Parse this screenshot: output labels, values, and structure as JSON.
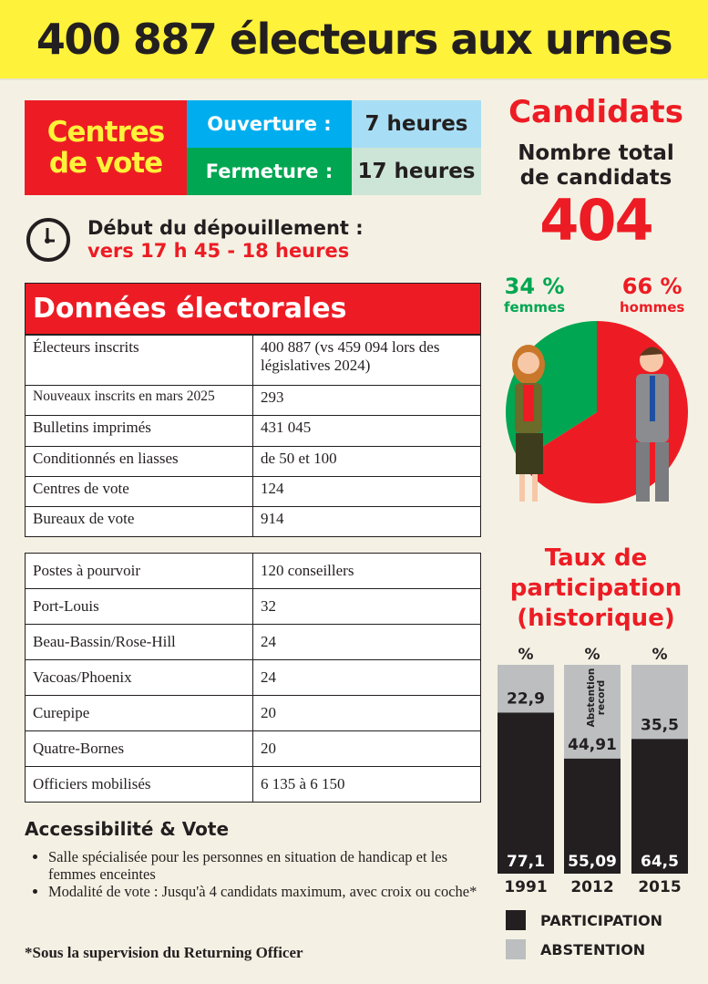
{
  "title": "400 887 électeurs aux urnes",
  "centres": {
    "label_line1": "Centres",
    "label_line2": "de vote",
    "ouverture_label": "Ouverture :",
    "ouverture_value": "7 heures",
    "fermeture_label": "Fermeture :",
    "fermeture_value": "17 heures"
  },
  "depouillement": {
    "label": "Début du dépouillement :",
    "value": "vers 17 h 45 - 18 heures",
    "icon": "clock-icon"
  },
  "donnees": {
    "title": "Données électorales",
    "rows": [
      {
        "label": "Électeurs inscrits",
        "value": "400 887 (vs 459 094 lors des législatives 2024)"
      },
      {
        "label": "Nouveaux inscrits en mars 2025",
        "value": "293"
      },
      {
        "label": "Bulletins imprimés",
        "value": "431 045"
      },
      {
        "label": "Conditionnés en liasses",
        "value": "de 50 et 100"
      },
      {
        "label": "Centres de vote",
        "value": "124"
      },
      {
        "label": "Bureaux de vote",
        "value": "914"
      }
    ]
  },
  "postes": {
    "rows": [
      {
        "label": "Postes à pourvoir",
        "value": "120 conseillers"
      },
      {
        "label": "Port-Louis",
        "value": "32"
      },
      {
        "label": "Beau-Bassin/Rose-Hill",
        "value": "24"
      },
      {
        "label": "Vacoas/Phoenix",
        "value": "24"
      },
      {
        "label": "Curepipe",
        "value": "20"
      },
      {
        "label": "Quatre-Bornes",
        "value": "20"
      },
      {
        "label": "Officiers mobilisés",
        "value": "6 135 à 6 150"
      }
    ]
  },
  "accessibilite": {
    "title": "Accessibilité & Vote",
    "bullets": [
      "Salle spécialisée pour les personnes en situation de handicap et les femmes enceintes",
      "Modalité de vote : Jusqu'à 4 candidats maximum, avec croix ou coche*"
    ],
    "footnote": "*Sous la supervision du Returning Officer"
  },
  "candidats": {
    "title": "Candidats",
    "subtitle_line1": "Nombre total",
    "subtitle_line2": "de candidats",
    "total": "404",
    "femmes_pct": "34 %",
    "femmes_label": "femmes",
    "hommes_pct": "66 %",
    "hommes_label": "hommes"
  },
  "colors": {
    "red": "#ed1c24",
    "green": "#00a651",
    "blue": "#00aeef",
    "yellow": "#fff23a",
    "dark": "#231f20",
    "grey": "#bcbec0"
  },
  "chart_data": [
    {
      "type": "pie",
      "values": [
        34,
        66
      ],
      "labels": [
        "femmes",
        "hommes"
      ],
      "colors": [
        "#00a651",
        "#ed1c24"
      ]
    },
    {
      "type": "bar",
      "stacked": true,
      "title": "Taux de participation (historique)",
      "unit": "%",
      "categories": [
        "1991",
        "2012",
        "2015"
      ],
      "series": [
        {
          "name": "PARTICIPATION",
          "values": [
            77.1,
            55.09,
            64.5
          ],
          "labels": [
            "77,1",
            "55,09",
            "64,5"
          ],
          "color": "#231f20"
        },
        {
          "name": "ABSTENTION",
          "values": [
            22.9,
            44.91,
            35.5
          ],
          "labels": [
            "22,9",
            "44,91",
            "35,5"
          ],
          "color": "#bcbec0"
        }
      ],
      "annotation": "Abstention record",
      "annotation_category": "2012",
      "ylim": [
        0,
        100
      ]
    }
  ]
}
